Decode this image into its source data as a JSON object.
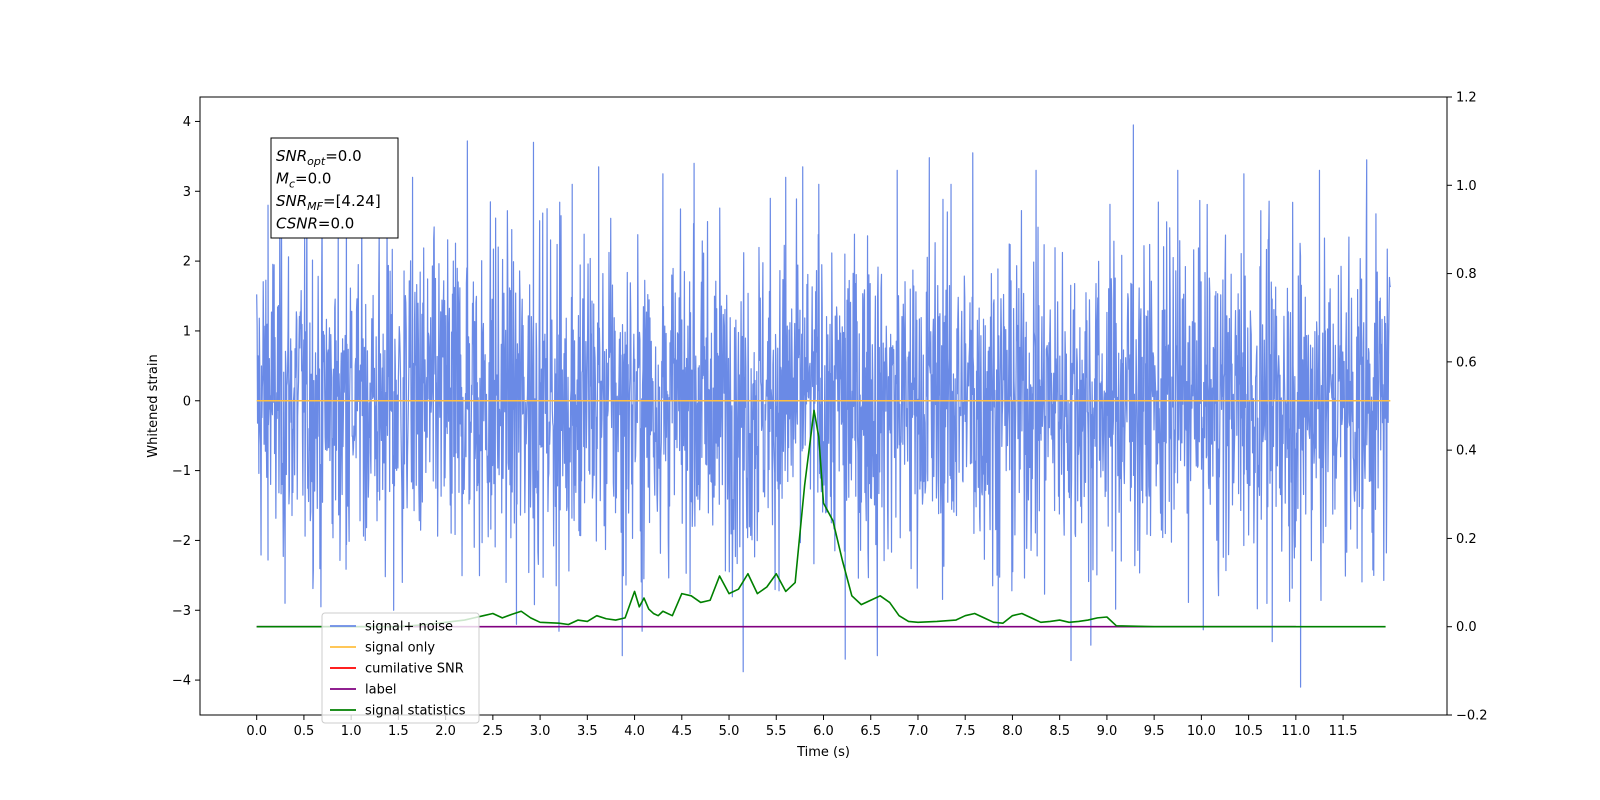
{
  "chart_data": {
    "type": "line",
    "xlabel": "Time (s)",
    "ylabel": "Whitened strain",
    "xlim": [
      -0.6,
      12.6
    ],
    "ylim": [
      -4.5,
      4.35
    ],
    "ylim_right": [
      -0.2,
      1.2
    ],
    "x_ticks": [
      0.0,
      0.5,
      1.0,
      1.5,
      2.0,
      2.5,
      3.0,
      3.5,
      4.0,
      4.5,
      5.0,
      5.5,
      6.0,
      6.5,
      7.0,
      7.5,
      8.0,
      8.5,
      9.0,
      9.5,
      10.0,
      10.5,
      11.0,
      11.5
    ],
    "x_tick_labels": [
      "0.0",
      "0.5",
      "1.0",
      "1.5",
      "2.0",
      "2.5",
      "3.0",
      "3.5",
      "4.0",
      "4.5",
      "5.0",
      "5.5",
      "6.0",
      "6.5",
      "7.0",
      "7.5",
      "8.0",
      "8.5",
      "9.0",
      "9.5",
      "10.0",
      "10.5",
      "11.0",
      "11.5"
    ],
    "y_ticks": [
      -4,
      -3,
      -2,
      -1,
      0,
      1,
      2,
      3,
      4
    ],
    "y_tick_labels": [
      "−4",
      "−3",
      "−2",
      "−1",
      "0",
      "1",
      "2",
      "3",
      "4"
    ],
    "y_right_ticks": [
      -0.2,
      0.0,
      0.2,
      0.4,
      0.6,
      0.8,
      1.0,
      1.2
    ],
    "y_right_tick_labels": [
      "−0.2",
      "0.0",
      "0.2",
      "0.4",
      "0.6",
      "0.8",
      "1.0",
      "1.2"
    ],
    "grid": false,
    "legend_position": "lower-left",
    "annotation": {
      "lines": [
        {
          "var": "SNR",
          "sub": "opt",
          "value": "=0.0"
        },
        {
          "var": "M",
          "sub": "c",
          "value": "=0.0"
        },
        {
          "var": "SNR",
          "sub": "MF",
          "value": "=[4.24]"
        },
        {
          "var": "CSNR",
          "sub": "",
          "value": "=0.0"
        }
      ]
    },
    "series": [
      {
        "name": "signal+ noise",
        "color": "#6a8ae6",
        "axis": "left",
        "kind": "noise",
        "x_range": [
          0.0,
          12.0
        ],
        "typical_range": [
          -1.9,
          2.2
        ],
        "envelope_min": -3.0,
        "envelope_max": 2.9,
        "spikes": [
          {
            "x": 0.12,
            "y": 2.8
          },
          {
            "x": 0.3,
            "y": -2.9
          },
          {
            "x": 0.68,
            "y": -2.95
          },
          {
            "x": 0.95,
            "y": 3.3
          },
          {
            "x": 1.45,
            "y": -3.0
          },
          {
            "x": 1.65,
            "y": 3.2
          },
          {
            "x": 2.23,
            "y": 3.72
          },
          {
            "x": 2.75,
            "y": -3.2
          },
          {
            "x": 2.93,
            "y": 3.7
          },
          {
            "x": 3.2,
            "y": -3.3
          },
          {
            "x": 3.34,
            "y": 3.1
          },
          {
            "x": 3.62,
            "y": 3.35
          },
          {
            "x": 3.87,
            "y": -3.65
          },
          {
            "x": 4.08,
            "y": -3.3
          },
          {
            "x": 4.3,
            "y": 3.25
          },
          {
            "x": 4.63,
            "y": 3.4
          },
          {
            "x": 5.15,
            "y": -3.88
          },
          {
            "x": 5.6,
            "y": 3.2
          },
          {
            "x": 5.78,
            "y": 3.35
          },
          {
            "x": 5.95,
            "y": 3.1
          },
          {
            "x": 6.23,
            "y": -3.7
          },
          {
            "x": 6.57,
            "y": -3.65
          },
          {
            "x": 6.78,
            "y": 3.3
          },
          {
            "x": 7.12,
            "y": 3.48
          },
          {
            "x": 7.35,
            "y": 3.1
          },
          {
            "x": 7.58,
            "y": 3.55
          },
          {
            "x": 7.85,
            "y": -3.25
          },
          {
            "x": 8.25,
            "y": 3.3
          },
          {
            "x": 8.62,
            "y": -3.72
          },
          {
            "x": 8.83,
            "y": -3.5
          },
          {
            "x": 9.28,
            "y": 3.95
          },
          {
            "x": 9.75,
            "y": 3.3
          },
          {
            "x": 10.02,
            "y": -3.28
          },
          {
            "x": 10.45,
            "y": 3.25
          },
          {
            "x": 10.75,
            "y": -3.45
          },
          {
            "x": 11.05,
            "y": -4.1
          },
          {
            "x": 11.25,
            "y": 3.3
          },
          {
            "x": 11.75,
            "y": 3.45
          }
        ]
      },
      {
        "name": "signal only",
        "color": "#ffbf40",
        "axis": "left",
        "x": [
          0.0,
          12.0
        ],
        "y": [
          0.0,
          0.0
        ]
      },
      {
        "name": "cumilative SNR",
        "color": "#ff0000",
        "axis": "right",
        "x": [],
        "y": []
      },
      {
        "name": "label",
        "color": "#800080",
        "axis": "right",
        "x": [
          0.0,
          11.0
        ],
        "y": [
          0.0,
          0.0
        ]
      },
      {
        "name": "signal statistics",
        "color": "#008000",
        "axis": "right",
        "x": [
          0.0,
          1.0,
          1.5,
          1.8,
          2.0,
          2.2,
          2.3,
          2.4,
          2.5,
          2.6,
          2.7,
          2.8,
          2.9,
          3.0,
          3.2,
          3.3,
          3.4,
          3.5,
          3.6,
          3.7,
          3.8,
          3.9,
          4.0,
          4.05,
          4.1,
          4.15,
          4.2,
          4.25,
          4.3,
          4.4,
          4.5,
          4.6,
          4.7,
          4.8,
          4.9,
          5.0,
          5.1,
          5.2,
          5.3,
          5.4,
          5.5,
          5.6,
          5.7,
          5.8,
          5.9,
          5.95,
          6.0,
          6.1,
          6.2,
          6.3,
          6.4,
          6.5,
          6.6,
          6.7,
          6.8,
          6.9,
          7.0,
          7.2,
          7.4,
          7.5,
          7.6,
          7.7,
          7.8,
          7.9,
          8.0,
          8.1,
          8.2,
          8.3,
          8.4,
          8.5,
          8.6,
          8.7,
          8.8,
          8.9,
          9.0,
          9.1,
          9.5,
          10.0,
          11.0,
          11.95
        ],
        "y": [
          0.0,
          0.0,
          0.0,
          0.005,
          0.01,
          0.015,
          0.02,
          0.025,
          0.03,
          0.02,
          0.028,
          0.035,
          0.02,
          0.01,
          0.008,
          0.005,
          0.015,
          0.012,
          0.025,
          0.018,
          0.015,
          0.02,
          0.08,
          0.045,
          0.065,
          0.04,
          0.03,
          0.025,
          0.035,
          0.025,
          0.075,
          0.07,
          0.055,
          0.06,
          0.115,
          0.075,
          0.085,
          0.12,
          0.075,
          0.09,
          0.12,
          0.08,
          0.1,
          0.32,
          0.49,
          0.43,
          0.28,
          0.24,
          0.15,
          0.07,
          0.05,
          0.06,
          0.07,
          0.055,
          0.025,
          0.012,
          0.01,
          0.012,
          0.015,
          0.025,
          0.03,
          0.02,
          0.01,
          0.008,
          0.025,
          0.03,
          0.02,
          0.01,
          0.012,
          0.015,
          0.01,
          0.012,
          0.015,
          0.02,
          0.022,
          0.002,
          0.0,
          0.0,
          0.0,
          0.0
        ]
      }
    ]
  }
}
